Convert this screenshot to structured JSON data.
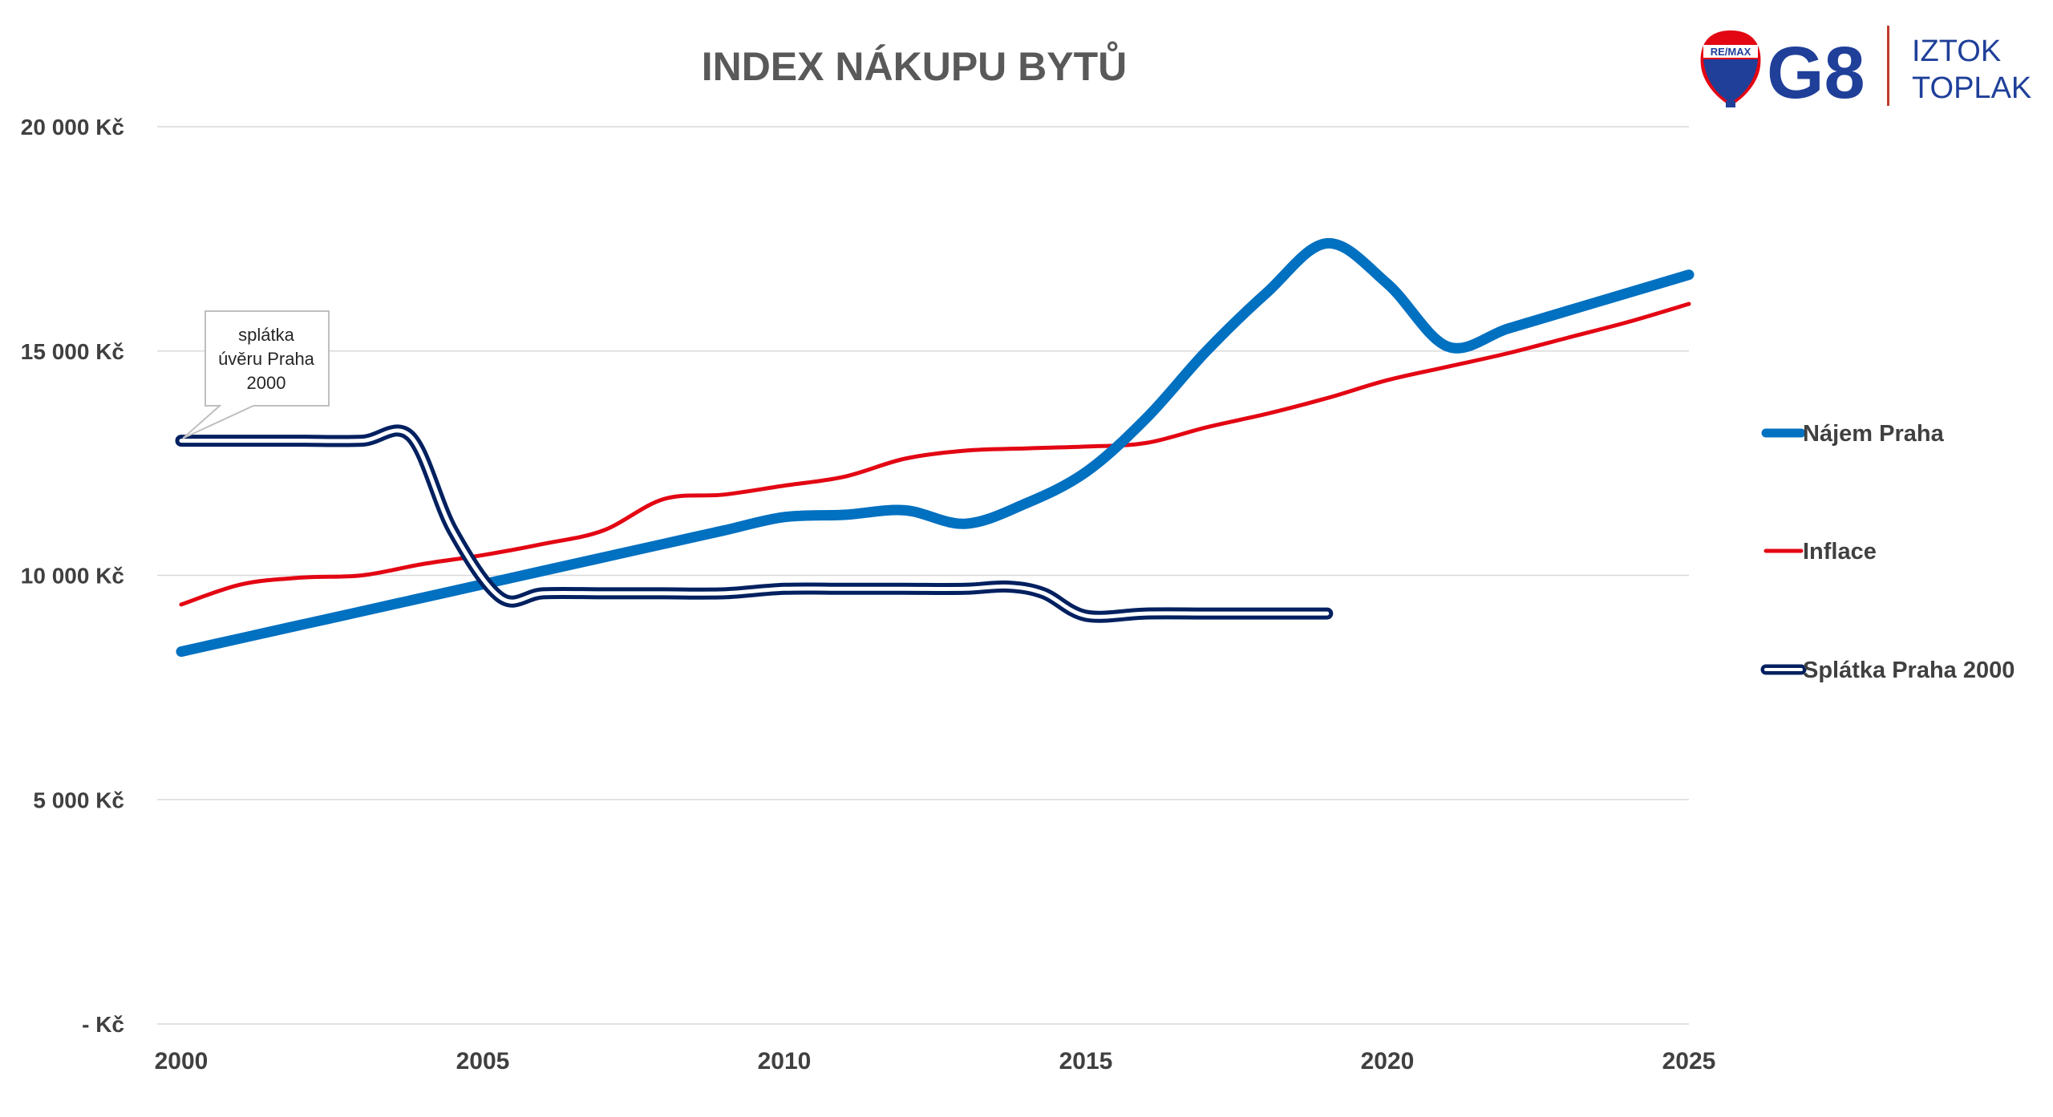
{
  "chart_data": {
    "type": "line",
    "title": "INDEX NÁKUPU BYTŮ",
    "xlabel": "",
    "ylabel": "",
    "x_ticks": [
      "2000",
      "2005",
      "2010",
      "2015",
      "2020",
      "2025"
    ],
    "y_ticks": [
      {
        "value": 0,
        "label": "-   Kč"
      },
      {
        "value": 5000,
        "label": "5 000 Kč"
      },
      {
        "value": 10000,
        "label": "10 000 Kč"
      },
      {
        "value": 15000,
        "label": "15 000 Kč"
      },
      {
        "value": 20000,
        "label": "20 000 Kč"
      }
    ],
    "xlim": [
      2000,
      2025
    ],
    "ylim": [
      0,
      20000
    ],
    "grid": "horizontal",
    "legend_position": "right",
    "series": [
      {
        "name": "Nájem Praha",
        "color": "#0070c0",
        "style": "thick",
        "x": [
          2000,
          2001,
          2002,
          2003,
          2004,
          2005,
          2006,
          2007,
          2008,
          2009,
          2010,
          2011,
          2012,
          2013,
          2014,
          2015,
          2016,
          2017,
          2018,
          2019,
          2020,
          2021,
          2022,
          2023,
          2024,
          2025
        ],
        "values": [
          8300,
          8600,
          8900,
          9200,
          9500,
          9800,
          10100,
          10400,
          10700,
          11000,
          11300,
          11350,
          11450,
          11150,
          11600,
          12300,
          13500,
          15000,
          16300,
          17400,
          16500,
          15100,
          15500,
          15900,
          16300,
          16700
        ]
      },
      {
        "name": "Inflace",
        "color": "#e30613",
        "style": "medium",
        "x": [
          2000,
          2001,
          2002,
          2003,
          2004,
          2005,
          2006,
          2007,
          2008,
          2009,
          2010,
          2011,
          2012,
          2013,
          2014,
          2015,
          2016,
          2017,
          2018,
          2019,
          2020,
          2021,
          2022,
          2023,
          2024,
          2025
        ],
        "values": [
          9350,
          9800,
          9950,
          10000,
          10250,
          10450,
          10700,
          11000,
          11700,
          11800,
          12000,
          12200,
          12600,
          12780,
          12830,
          12870,
          12950,
          13300,
          13600,
          13950,
          14350,
          14650,
          14950,
          15300,
          15650,
          16050
        ]
      },
      {
        "name": "Splátka Praha 2000",
        "color": "#002060",
        "style": "double",
        "x": [
          2000,
          2001,
          2002,
          2003,
          2003.8,
          2004.5,
          2005.3,
          2006,
          2007,
          2008,
          2009,
          2010,
          2011,
          2012,
          2013,
          2013.7,
          2014.3,
          2015,
          2016,
          2017,
          2018,
          2019
        ],
        "values": [
          13000,
          13000,
          13000,
          13000,
          13100,
          11000,
          9500,
          9600,
          9600,
          9600,
          9600,
          9700,
          9700,
          9700,
          9700,
          9750,
          9600,
          9100,
          9150,
          9150,
          9150,
          9150
        ]
      }
    ],
    "annotations": [
      {
        "text_lines": [
          "splátka",
          "úvěru Praha",
          "2000"
        ],
        "target_x": 2000,
        "target_y": 13000
      }
    ]
  },
  "branding": {
    "balloon_text": "RE/MAX",
    "logo_text": "G8",
    "agent_name_line1": "IZTOK",
    "agent_name_line2": "TOPLAK",
    "brand_color": "#1f3f99",
    "divider_color": "#c0392b"
  }
}
